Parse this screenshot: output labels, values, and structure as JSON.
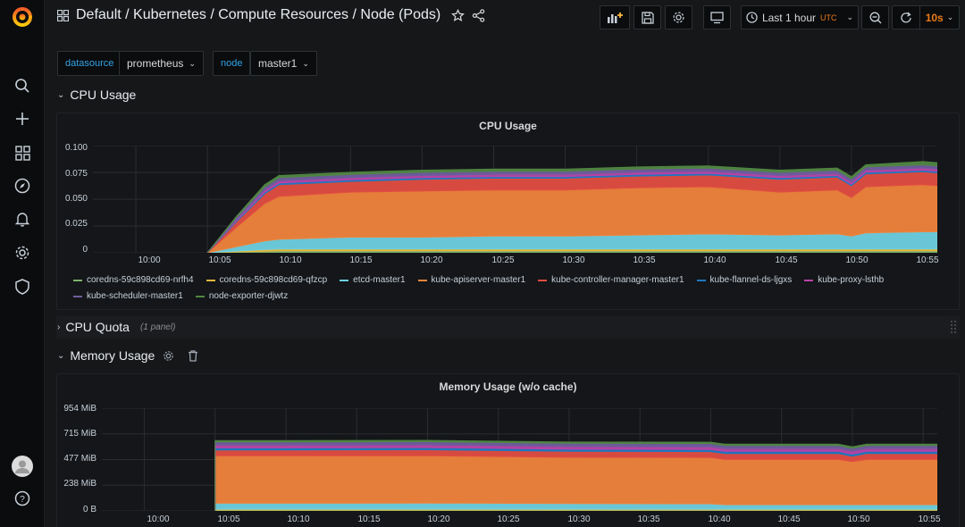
{
  "topnav": {
    "breadcrumb": "Default / Kubernetes / Compute Resources / Node (Pods)",
    "time_range": "Last 1 hour",
    "timezone": "UTC",
    "refresh": "10s"
  },
  "variables": [
    {
      "label": "datasource",
      "value": "prometheus"
    },
    {
      "label": "node",
      "value": "master1"
    }
  ],
  "rows": {
    "cpu_usage": "CPU Usage",
    "cpu_quota": "CPU Quota",
    "cpu_quota_count": "(1 panel)",
    "memory_usage": "Memory Usage"
  },
  "cpu_panel": {
    "title": "CPU Usage",
    "y_ticks": [
      "0.100",
      "0.075",
      "0.050",
      "0.025",
      "0"
    ],
    "x_ticks": [
      "10:00",
      "10:05",
      "10:10",
      "10:15",
      "10:20",
      "10:25",
      "10:30",
      "10:35",
      "10:40",
      "10:45",
      "10:50",
      "10:55"
    ]
  },
  "mem_panel": {
    "title": "Memory Usage (w/o cache)",
    "y_ticks": [
      "954 MiB",
      "715 MiB",
      "477 MiB",
      "238 MiB",
      "0 B"
    ],
    "x_ticks": [
      "10:00",
      "10:05",
      "10:10",
      "10:15",
      "10:20",
      "10:25",
      "10:30",
      "10:35",
      "10:40",
      "10:45",
      "10:50",
      "10:55"
    ]
  },
  "legend": [
    {
      "name": "coredns-59c898cd69-nrfh4",
      "color": "#7eb26d"
    },
    {
      "name": "coredns-59c898cd69-qfzcp",
      "color": "#eab839"
    },
    {
      "name": "etcd-master1",
      "color": "#6ed0e0"
    },
    {
      "name": "kube-apiserver-master1",
      "color": "#ef843c"
    },
    {
      "name": "kube-controller-manager-master1",
      "color": "#e24d42"
    },
    {
      "name": "kube-flannel-ds-ljgxs",
      "color": "#1f78c1"
    },
    {
      "name": "kube-proxy-lsthb",
      "color": "#ba43a9"
    },
    {
      "name": "kube-scheduler-master1",
      "color": "#705da0"
    },
    {
      "name": "node-exporter-djwtz",
      "color": "#508642"
    }
  ],
  "chart_data": [
    {
      "type": "area",
      "title": "CPU Usage",
      "x_range": [
        "09:57",
        "10:56"
      ],
      "ylim": [
        0,
        0.1
      ],
      "grid": true,
      "legend_position": "bottom",
      "x": [
        "10:05",
        "10:07",
        "10:09",
        "10:10",
        "10:15",
        "10:20",
        "10:25",
        "10:30",
        "10:35",
        "10:40",
        "10:45",
        "10:49",
        "10:50",
        "10:51",
        "10:55",
        "10:56"
      ],
      "series": [
        {
          "name": "coredns-59c898cd69-nrfh4",
          "values": [
            0,
            0.0008,
            0.0015,
            0.0018,
            0.0018,
            0.0018,
            0.0018,
            0.0018,
            0.0018,
            0.0018,
            0.0018,
            0.0018,
            0.0018,
            0.0018,
            0.0018,
            0.0018
          ]
        },
        {
          "name": "coredns-59c898cd69-qfzcp",
          "values": [
            0,
            0.0008,
            0.0015,
            0.0018,
            0.0018,
            0.0018,
            0.0018,
            0.0018,
            0.0018,
            0.0018,
            0.0018,
            0.0018,
            0.0018,
            0.0018,
            0.0018,
            0.0018
          ]
        },
        {
          "name": "etcd-master1",
          "values": [
            0,
            0.004,
            0.008,
            0.009,
            0.011,
            0.011,
            0.012,
            0.012,
            0.013,
            0.014,
            0.013,
            0.014,
            0.012,
            0.015,
            0.016,
            0.016
          ]
        },
        {
          "name": "kube-apiserver-master1",
          "values": [
            0,
            0.018,
            0.035,
            0.04,
            0.042,
            0.043,
            0.043,
            0.043,
            0.044,
            0.044,
            0.04,
            0.041,
            0.036,
            0.043,
            0.044,
            0.043
          ]
        },
        {
          "name": "kube-controller-manager-master1",
          "values": [
            0,
            0.005,
            0.009,
            0.011,
            0.01,
            0.011,
            0.011,
            0.011,
            0.011,
            0.011,
            0.012,
            0.012,
            0.011,
            0.012,
            0.012,
            0.012
          ]
        },
        {
          "name": "kube-flannel-ds-ljgxs",
          "values": [
            0,
            0.001,
            0.0015,
            0.0015,
            0.0015,
            0.0015,
            0.0015,
            0.0015,
            0.0015,
            0.0015,
            0.0015,
            0.0015,
            0.0015,
            0.0015,
            0.0015,
            0.0015
          ]
        },
        {
          "name": "kube-proxy-lsthb",
          "values": [
            0,
            0.001,
            0.002,
            0.002,
            0.002,
            0.002,
            0.002,
            0.002,
            0.002,
            0.002,
            0.002,
            0.002,
            0.002,
            0.002,
            0.002,
            0.002
          ]
        },
        {
          "name": "kube-scheduler-master1",
          "values": [
            0,
            0.002,
            0.003,
            0.003,
            0.003,
            0.003,
            0.003,
            0.003,
            0.003,
            0.003,
            0.003,
            0.003,
            0.003,
            0.003,
            0.003,
            0.003
          ]
        },
        {
          "name": "node-exporter-djwtz",
          "values": [
            0,
            0.001,
            0.002,
            0.002,
            0.002,
            0.002,
            0.002,
            0.002,
            0.002,
            0.002,
            0.002,
            0.002,
            0.002,
            0.002,
            0.003,
            0.003
          ]
        }
      ]
    },
    {
      "type": "area",
      "title": "Memory Usage (w/o cache)",
      "x_range": [
        "09:57",
        "10:56"
      ],
      "ylim": [
        0,
        954
      ],
      "y_unit": "MiB",
      "grid": true,
      "x": [
        "10:05",
        "10:05",
        "10:10",
        "10:20",
        "10:30",
        "10:40",
        "10:41",
        "10:49",
        "10:50",
        "10:51",
        "10:55",
        "10:56"
      ],
      "series": [
        {
          "name": "coredns-59c898cd69-nrfh4",
          "values": [
            0,
            8,
            8,
            8,
            8,
            8,
            8,
            8,
            8,
            8,
            8,
            8
          ]
        },
        {
          "name": "coredns-59c898cd69-qfzcp",
          "values": [
            0,
            8,
            8,
            8,
            8,
            8,
            8,
            8,
            8,
            8,
            8,
            8
          ]
        },
        {
          "name": "etcd-master1",
          "values": [
            0,
            55,
            55,
            57,
            52,
            50,
            42,
            42,
            42,
            42,
            42,
            42
          ]
        },
        {
          "name": "kube-apiserver-master1",
          "values": [
            0,
            440,
            440,
            440,
            430,
            430,
            420,
            420,
            400,
            420,
            420,
            420
          ]
        },
        {
          "name": "kube-controller-manager-master1",
          "values": [
            0,
            55,
            55,
            55,
            55,
            55,
            55,
            55,
            50,
            55,
            55,
            55
          ]
        },
        {
          "name": "kube-flannel-ds-ljgxs",
          "values": [
            0,
            20,
            20,
            20,
            20,
            20,
            20,
            20,
            20,
            20,
            20,
            20
          ]
        },
        {
          "name": "kube-proxy-lsthb",
          "values": [
            0,
            25,
            25,
            25,
            25,
            25,
            25,
            25,
            25,
            25,
            25,
            25
          ]
        },
        {
          "name": "kube-scheduler-master1",
          "values": [
            0,
            30,
            30,
            30,
            30,
            30,
            30,
            30,
            30,
            30,
            30,
            30
          ]
        },
        {
          "name": "node-exporter-djwtz",
          "values": [
            0,
            12,
            12,
            12,
            12,
            12,
            12,
            12,
            12,
            12,
            12,
            12
          ]
        }
      ]
    }
  ]
}
